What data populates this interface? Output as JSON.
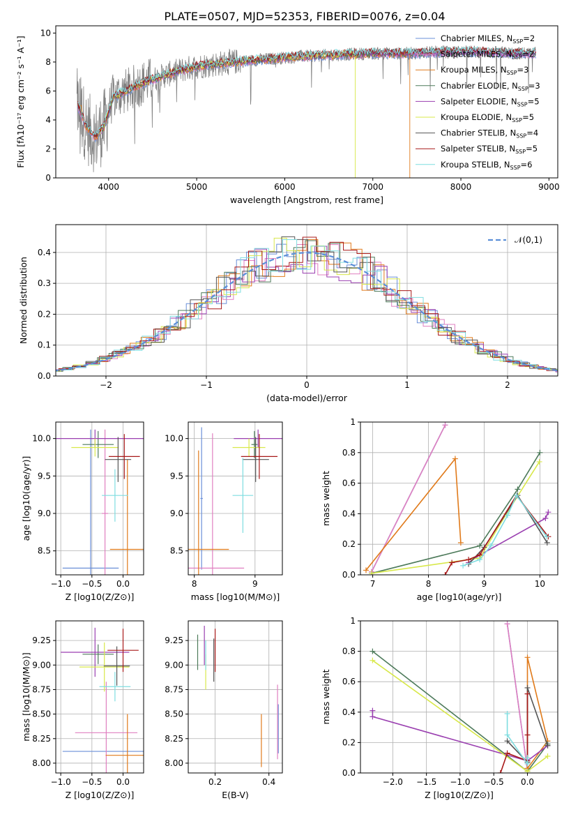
{
  "figure_title": "PLATE=0507, MJD=52353, FIBERID=0076, z=0.04",
  "colors": {
    "Chabrier MILES": "#6a8fd8",
    "Salpeter MILES": "#e07fc0",
    "Kroupa MILES": "#e07a1a",
    "Chabrier ELODIE": "#4d7a5a",
    "Salpeter ELODIE": "#9a3fb0",
    "Kroupa ELODIE": "#d8e84a",
    "Chabrier STELIB": "#555555",
    "Salpeter STELIB": "#a81818",
    "Kroupa STELIB": "#7fdde0",
    "data": "#808080",
    "gauss": "#5b8fd8"
  },
  "chart_data": [
    {
      "id": "spectrum",
      "type": "line",
      "title": "PLATE=0507, MJD=52353, FIBERID=0076, z=0.04",
      "xlabel": "wavelength [Angstrom, rest frame]",
      "ylabel": "Flux [fλ10⁻¹⁷ erg cm⁻² s⁻¹ A⁻¹]",
      "xlim": [
        3400,
        9100
      ],
      "ylim": [
        0,
        10.5
      ],
      "xticks": [
        4000,
        5000,
        6000,
        7000,
        8000,
        9000
      ],
      "yticks": [
        0,
        2,
        4,
        6,
        8,
        10
      ],
      "legend_position": "right",
      "legend": [
        "Chabrier MILES, N_SSP=2",
        "Salpeter MILES, N_SSP=2",
        "Kroupa MILES, N_SSP=3",
        "Chabrier ELODIE, N_SSP=3",
        "Salpeter ELODIE, N_SSP=5",
        "Kroupa ELODIE, N_SSP=5",
        "Chabrier STELIB, N_SSP=4",
        "Salpeter STELIB, N_SSP=5",
        "Kroupa STELIB, N_SSP=6"
      ],
      "continuum_x": [
        3650,
        3750,
        3850,
        3950,
        4050,
        4200,
        4400,
        4600,
        4800,
        5000,
        5400,
        5800,
        6200,
        6600,
        7000,
        7400,
        7800,
        8200,
        8600,
        8800
      ],
      "continuum_y": [
        5.0,
        3.5,
        2.8,
        3.6,
        5.6,
        6.0,
        6.6,
        7.0,
        7.4,
        7.7,
        8.0,
        8.2,
        8.4,
        8.5,
        8.6,
        8.6,
        8.7,
        8.7,
        8.6,
        8.6
      ],
      "annotations": [
        "Kroupa ELODIE model drops to 0 at ~6800 Å",
        "Kroupa MILES model drops to 0 at ~7420 Å"
      ]
    },
    {
      "id": "residuals",
      "type": "step-histogram",
      "xlabel": "(data-model)/error",
      "ylabel": "Normed distribution",
      "xlim": [
        -2.5,
        2.5
      ],
      "ylim": [
        0,
        0.49
      ],
      "xticks": [
        -2,
        -1,
        0,
        1,
        2
      ],
      "yticks": [
        0.0,
        0.1,
        0.2,
        0.3,
        0.4
      ],
      "grid": true,
      "legend": [
        "𝒩(0,1)"
      ],
      "legend_position": "top-right",
      "gauss_mean": 0,
      "gauss_sigma": 1
    },
    {
      "id": "z-age",
      "type": "errorbar",
      "xlabel": "Z [log10(Z/Z⊙)]",
      "ylabel": "age  [log10(age/yr)]",
      "xlim": [
        -1.08,
        0.33
      ],
      "ylim": [
        8.18,
        10.22
      ],
      "xticks": [
        -1.0,
        -0.5,
        0.0
      ],
      "yticks": [
        8.5,
        9.0,
        9.5,
        10.0
      ],
      "grid": true,
      "points": [
        {
          "m": "Chabrier MILES",
          "x": -0.52,
          "xe": 0.45,
          "y": 8.27,
          "ye": 1.85
        },
        {
          "m": "Salpeter MILES",
          "x": -0.29,
          "xe": 0.05,
          "y": 9.0,
          "ye": 1.12
        },
        {
          "m": "Kroupa MILES",
          "x": 0.07,
          "xe": 0.28,
          "y": 8.52,
          "ye": 1.2
        },
        {
          "m": "Chabrier ELODIE",
          "x": -0.4,
          "xe": 0.25,
          "y": 9.92,
          "ye": 0.18
        },
        {
          "m": "Salpeter ELODIE",
          "x": -0.45,
          "xe": 0.8,
          "y": 10.0,
          "ye": 0.12
        },
        {
          "m": "Kroupa ELODIE",
          "x": -0.45,
          "xe": 0.38,
          "y": 9.88,
          "ye": 0.12
        },
        {
          "m": "Chabrier STELIB",
          "x": -0.08,
          "xe": 0.21,
          "y": 9.72,
          "ye": 0.3
        },
        {
          "m": "Salpeter STELIB",
          "x": 0.02,
          "xe": 0.25,
          "y": 9.76,
          "ye": 0.3
        },
        {
          "m": "Kroupa STELIB",
          "x": -0.13,
          "xe": 0.21,
          "y": 9.24,
          "ye": 0.35
        }
      ]
    },
    {
      "id": "mass-age",
      "type": "errorbar",
      "xlabel": "mass [log10(M/M⊙)]",
      "ylabel": "",
      "xlim": [
        7.9,
        9.45
      ],
      "ylim": [
        8.18,
        10.22
      ],
      "xticks": [
        8,
        9
      ],
      "yticks": [
        8.5,
        9.0,
        9.5,
        10.0
      ],
      "grid": true,
      "points": [
        {
          "m": "Chabrier MILES",
          "x": 8.12,
          "xe": 0.02,
          "y": 9.2,
          "ye": 0.95
        },
        {
          "m": "Salpeter MILES",
          "x": 8.3,
          "xe": 0.52,
          "y": 8.27,
          "ye": 1.8
        },
        {
          "m": "Kroupa MILES",
          "x": 8.07,
          "xe": 0.5,
          "y": 8.52,
          "ye": 1.32
        },
        {
          "m": "Chabrier ELODIE",
          "x": 8.99,
          "xe": 0.05,
          "y": 9.92,
          "ye": 0.18
        },
        {
          "m": "Salpeter ELODIE",
          "x": 9.05,
          "xe": 0.4,
          "y": 10.0,
          "ye": 0.12
        },
        {
          "m": "Kroupa ELODIE",
          "x": 8.9,
          "xe": 0.27,
          "y": 9.88,
          "ye": 0.12
        },
        {
          "m": "Chabrier STELIB",
          "x": 9.01,
          "xe": 0.22,
          "y": 9.72,
          "ye": 0.3
        },
        {
          "m": "Salpeter STELIB",
          "x": 9.07,
          "xe": 0.3,
          "y": 9.76,
          "ye": 0.3
        },
        {
          "m": "Kroupa STELIB",
          "x": 8.8,
          "xe": 0.17,
          "y": 9.24,
          "ye": 0.5
        }
      ]
    },
    {
      "id": "age-weight",
      "type": "line",
      "xlabel": "age  [log10(age/yr)]",
      "ylabel": "mass weight",
      "xlim": [
        6.78,
        10.32
      ],
      "ylim": [
        0,
        1.0
      ],
      "xticks": [
        7,
        8,
        9,
        10
      ],
      "yticks": [
        0.0,
        0.2,
        0.4,
        0.6,
        0.8,
        1.0
      ],
      "grid": true,
      "series": [
        {
          "m": "Chabrier MILES",
          "x": [
            6.98,
            8.3
          ],
          "y": [
            0.02,
            0.98
          ]
        },
        {
          "m": "Salpeter MILES",
          "x": [
            6.98,
            8.3
          ],
          "y": [
            0.02,
            0.98
          ]
        },
        {
          "m": "Kroupa MILES",
          "x": [
            6.88,
            8.48,
            8.58
          ],
          "y": [
            0.03,
            0.76,
            0.21
          ]
        },
        {
          "m": "Chabrier ELODIE",
          "x": [
            6.98,
            8.92,
            9.6,
            10.0
          ],
          "y": [
            0.01,
            0.19,
            0.56,
            0.8
          ]
        },
        {
          "m": "Salpeter ELODIE",
          "x": [
            8.72,
            8.92,
            10.1,
            10.15
          ],
          "y": [
            0.08,
            0.13,
            0.37,
            0.41
          ]
        },
        {
          "m": "Kroupa ELODIE",
          "x": [
            6.98,
            8.92,
            9.4,
            9.99
          ],
          "y": [
            0.01,
            0.11,
            0.4,
            0.74
          ]
        },
        {
          "m": "Chabrier STELIB",
          "x": [
            8.72,
            9.0,
            9.6,
            10.13
          ],
          "y": [
            0.07,
            0.18,
            0.52,
            0.21
          ]
        },
        {
          "m": "Salpeter STELIB",
          "x": [
            8.3,
            8.42,
            8.72,
            8.92,
            9.58,
            10.15
          ],
          "y": [
            0.0,
            0.08,
            0.1,
            0.13,
            0.52,
            0.25
          ]
        },
        {
          "m": "Kroupa STELIB",
          "x": [
            8.62,
            8.92,
            9.12,
            9.42,
            9.58,
            10.12
          ],
          "y": [
            0.06,
            0.1,
            0.19,
            0.39,
            0.52,
            0.25
          ]
        }
      ]
    },
    {
      "id": "z-mass",
      "type": "errorbar",
      "xlabel": "Z [log10(Z/Z⊙)]",
      "ylabel": "mass [log10(M/M⊙)]",
      "xlim": [
        -1.08,
        0.33
      ],
      "ylim": [
        7.9,
        9.45
      ],
      "xticks": [
        -1.0,
        -0.5,
        0.0
      ],
      "yticks": [
        8.0,
        8.25,
        8.5,
        8.75,
        9.0,
        9.25
      ],
      "grid": true,
      "points": [
        {
          "m": "Chabrier MILES",
          "x": -0.3,
          "xe": 0.67,
          "y": 8.12,
          "ye": 0.0
        },
        {
          "m": "Salpeter MILES",
          "x": -0.27,
          "xe": 0.5,
          "y": 8.31,
          "ye": 0.52
        },
        {
          "m": "Kroupa MILES",
          "x": 0.07,
          "xe": 0.35,
          "y": 8.08,
          "ye": 0.42
        },
        {
          "m": "Chabrier ELODIE",
          "x": -0.4,
          "xe": 0.25,
          "y": 9.11,
          "ye": 0.1
        },
        {
          "m": "Salpeter ELODIE",
          "x": -0.45,
          "xe": 0.55,
          "y": 9.13,
          "ye": 0.25
        },
        {
          "m": "Kroupa ELODIE",
          "x": -0.3,
          "xe": 0.4,
          "y": 8.98,
          "ye": 0.25
        },
        {
          "m": "Chabrier STELIB",
          "x": -0.1,
          "xe": 0.21,
          "y": 8.99,
          "ye": 0.2
        },
        {
          "m": "Salpeter STELIB",
          "x": 0.0,
          "xe": 0.25,
          "y": 9.15,
          "ye": 0.22
        },
        {
          "m": "Kroupa STELIB",
          "x": -0.13,
          "xe": 0.25,
          "y": 8.78,
          "ye": 0.15
        }
      ]
    },
    {
      "id": "ebv-mass",
      "type": "errorbar",
      "xlabel": "E(B-V)",
      "ylabel": "",
      "xlim": [
        0.1,
        0.45
      ],
      "ylim": [
        7.9,
        9.45
      ],
      "xticks": [
        0.2,
        0.4
      ],
      "yticks": [
        8.0,
        8.25,
        8.5,
        8.75,
        9.0,
        9.25
      ],
      "grid": true,
      "points": [
        {
          "m": "Chabrier MILES",
          "x": 0.435,
          "xe": 0,
          "y": 8.35,
          "ye": 0.25
        },
        {
          "m": "Salpeter MILES",
          "x": 0.432,
          "xe": 0,
          "y": 8.42,
          "ye": 0.38
        },
        {
          "m": "Kroupa MILES",
          "x": 0.372,
          "xe": 0,
          "y": 8.23,
          "ye": 0.27
        },
        {
          "m": "Chabrier ELODIE",
          "x": 0.135,
          "xe": 0,
          "y": 9.13,
          "ye": 0.18
        },
        {
          "m": "Salpeter ELODIE",
          "x": 0.16,
          "xe": 0,
          "y": 9.2,
          "ye": 0.2
        },
        {
          "m": "Kroupa ELODIE",
          "x": 0.165,
          "xe": 0,
          "y": 8.93,
          "ye": 0.18
        },
        {
          "m": "Chabrier STELIB",
          "x": 0.195,
          "xe": 0,
          "y": 9.05,
          "ye": 0.22
        },
        {
          "m": "Salpeter STELIB",
          "x": 0.2,
          "xe": 0,
          "y": 9.15,
          "ye": 0.22
        },
        {
          "m": "Kroupa STELIB",
          "x": 0.165,
          "xe": 0,
          "y": 9.1,
          "ye": 0.15
        }
      ]
    },
    {
      "id": "z-weight",
      "type": "line",
      "xlabel": "Z [log10(Z/Z⊙)]",
      "ylabel": "mass weight",
      "xlim": [
        -2.48,
        0.45
      ],
      "ylim": [
        0,
        1.0
      ],
      "xticks": [
        -2.0,
        -1.5,
        -1.0,
        -0.5,
        0.0
      ],
      "yticks": [
        0.0,
        0.2,
        0.4,
        0.6,
        0.8,
        1.0
      ],
      "grid": true,
      "series": [
        {
          "m": "Chabrier MILES",
          "x": [
            -0.3,
            0.0
          ],
          "y": [
            0.98,
            0.02
          ]
        },
        {
          "m": "Salpeter MILES",
          "x": [
            -0.3,
            0.0
          ],
          "y": [
            0.98,
            0.02
          ]
        },
        {
          "m": "Kroupa MILES",
          "x": [
            0.0,
            0.0,
            0.3,
            0.0
          ],
          "y": [
            0.03,
            0.76,
            0.21,
            0.03
          ]
        },
        {
          "m": "Chabrier ELODIE",
          "x": [
            -2.3,
            0.0,
            0.3
          ],
          "y": [
            0.8,
            0.01,
            0.19
          ]
        },
        {
          "m": "Salpeter ELODIE",
          "x": [
            -2.3,
            -2.3,
            0.0,
            0.3
          ],
          "y": [
            0.41,
            0.37,
            0.08,
            0.18
          ]
        },
        {
          "m": "Kroupa ELODIE",
          "x": [
            -2.3,
            0.0,
            0.3
          ],
          "y": [
            0.74,
            0.01,
            0.11
          ]
        },
        {
          "m": "Chabrier STELIB",
          "x": [
            -0.3,
            0.0,
            0.0,
            0.3
          ],
          "y": [
            0.21,
            0.07,
            0.56,
            0.18
          ]
        },
        {
          "m": "Salpeter STELIB",
          "x": [
            -0.4,
            -0.3,
            0.0,
            0.0,
            0.0
          ],
          "y": [
            0.0,
            0.13,
            0.08,
            0.52,
            0.25
          ]
        },
        {
          "m": "Kroupa STELIB",
          "x": [
            -0.3,
            -0.3,
            0.0,
            0.0
          ],
          "y": [
            0.39,
            0.25,
            0.06,
            0.1
          ]
        }
      ]
    }
  ]
}
